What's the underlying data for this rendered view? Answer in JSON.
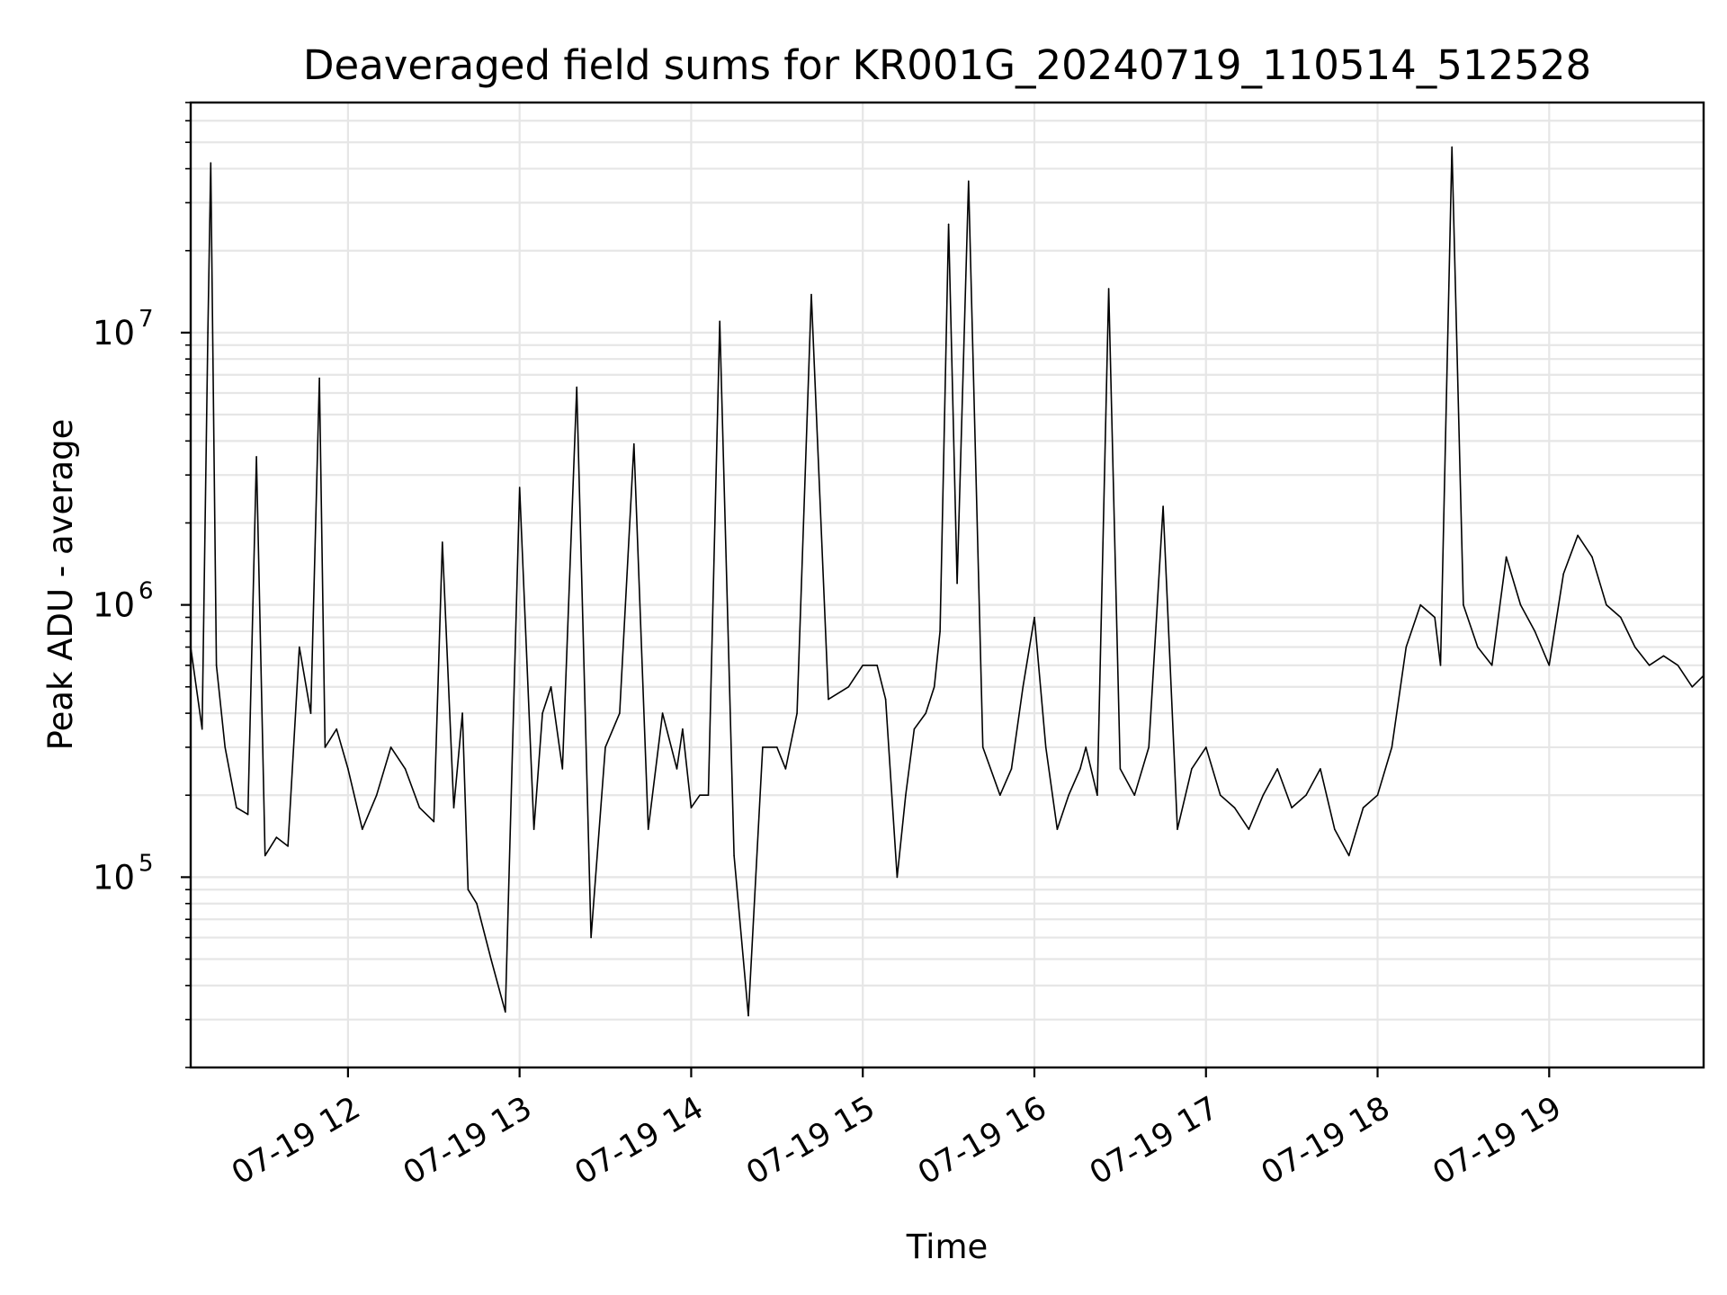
{
  "chart_data": {
    "type": "line",
    "title": "Deaveraged field sums for KR001G_20240719_110514_512528",
    "xlabel": "Time",
    "ylabel": "Peak ADU - average",
    "yscale": "log",
    "ylim": [
      20000,
      70000000
    ],
    "xlim": [
      "2024-07-19 11:05",
      "2024-07-19 19:54"
    ],
    "grid": true,
    "line_color": "#000000",
    "grid_color": "#e6e6e6",
    "x_ticks": [
      {
        "time": "2024-07-19 12:00",
        "label": "07-19 12"
      },
      {
        "time": "2024-07-19 13:00",
        "label": "07-19 13"
      },
      {
        "time": "2024-07-19 14:00",
        "label": "07-19 14"
      },
      {
        "time": "2024-07-19 15:00",
        "label": "07-19 15"
      },
      {
        "time": "2024-07-19 16:00",
        "label": "07-19 16"
      },
      {
        "time": "2024-07-19 17:00",
        "label": "07-19 17"
      },
      {
        "time": "2024-07-19 18:00",
        "label": "07-19 18"
      },
      {
        "time": "2024-07-19 19:00",
        "label": "07-19 19"
      }
    ],
    "y_ticks": [
      {
        "value": 100000,
        "base": "10",
        "exp": "5"
      },
      {
        "value": 1000000,
        "base": "10",
        "exp": "6"
      },
      {
        "value": 10000000,
        "base": "10",
        "exp": "7"
      }
    ],
    "series": [
      {
        "x": [
          "2024-07-19 11:05",
          "2024-07-19 11:09",
          "2024-07-19 11:11",
          "2024-07-19 11:12",
          "2024-07-19 11:14",
          "2024-07-19 11:17",
          "2024-07-19 11:21",
          "2024-07-19 11:25",
          "2024-07-19 11:28",
          "2024-07-19 11:31",
          "2024-07-19 11:35",
          "2024-07-19 11:39",
          "2024-07-19 11:43",
          "2024-07-19 11:47",
          "2024-07-19 11:50",
          "2024-07-19 11:52",
          "2024-07-19 11:56",
          "2024-07-19 12:00",
          "2024-07-19 12:05",
          "2024-07-19 12:10",
          "2024-07-19 12:15",
          "2024-07-19 12:20",
          "2024-07-19 12:25",
          "2024-07-19 12:30",
          "2024-07-19 12:33",
          "2024-07-19 12:37",
          "2024-07-19 12:40",
          "2024-07-19 12:42",
          "2024-07-19 12:45",
          "2024-07-19 12:50",
          "2024-07-19 12:55",
          "2024-07-19 13:00",
          "2024-07-19 13:05",
          "2024-07-19 13:08",
          "2024-07-19 13:11",
          "2024-07-19 13:15",
          "2024-07-19 13:20",
          "2024-07-19 13:25",
          "2024-07-19 13:30",
          "2024-07-19 13:35",
          "2024-07-19 13:40",
          "2024-07-19 13:45",
          "2024-07-19 13:50",
          "2024-07-19 13:55",
          "2024-07-19 13:57",
          "2024-07-19 14:00",
          "2024-07-19 14:03",
          "2024-07-19 14:06",
          "2024-07-19 14:10",
          "2024-07-19 14:15",
          "2024-07-19 14:20",
          "2024-07-19 14:25",
          "2024-07-19 14:30",
          "2024-07-19 14:33",
          "2024-07-19 14:37",
          "2024-07-19 14:42",
          "2024-07-19 14:48",
          "2024-07-19 14:55",
          "2024-07-19 15:00",
          "2024-07-19 15:05",
          "2024-07-19 15:08",
          "2024-07-19 15:12",
          "2024-07-19 15:15",
          "2024-07-19 15:18",
          "2024-07-19 15:22",
          "2024-07-19 15:25",
          "2024-07-19 15:27",
          "2024-07-19 15:30",
          "2024-07-19 15:33",
          "2024-07-19 15:37",
          "2024-07-19 15:42",
          "2024-07-19 15:48",
          "2024-07-19 15:52",
          "2024-07-19 15:56",
          "2024-07-19 16:00",
          "2024-07-19 16:04",
          "2024-07-19 16:08",
          "2024-07-19 16:12",
          "2024-07-19 16:16",
          "2024-07-19 16:18",
          "2024-07-19 16:22",
          "2024-07-19 16:26",
          "2024-07-19 16:30",
          "2024-07-19 16:35",
          "2024-07-19 16:40",
          "2024-07-19 16:45",
          "2024-07-19 16:50",
          "2024-07-19 16:55",
          "2024-07-19 17:00",
          "2024-07-19 17:05",
          "2024-07-19 17:10",
          "2024-07-19 17:15",
          "2024-07-19 17:20",
          "2024-07-19 17:25",
          "2024-07-19 17:30",
          "2024-07-19 17:35",
          "2024-07-19 17:40",
          "2024-07-19 17:45",
          "2024-07-19 17:50",
          "2024-07-19 17:55",
          "2024-07-19 18:00",
          "2024-07-19 18:05",
          "2024-07-19 18:10",
          "2024-07-19 18:15",
          "2024-07-19 18:20",
          "2024-07-19 18:22",
          "2024-07-19 18:26",
          "2024-07-19 18:30",
          "2024-07-19 18:35",
          "2024-07-19 18:40",
          "2024-07-19 18:45",
          "2024-07-19 18:50",
          "2024-07-19 18:55",
          "2024-07-19 19:00",
          "2024-07-19 19:05",
          "2024-07-19 19:10",
          "2024-07-19 19:15",
          "2024-07-19 19:20",
          "2024-07-19 19:25",
          "2024-07-19 19:30",
          "2024-07-19 19:35",
          "2024-07-19 19:40",
          "2024-07-19 19:45",
          "2024-07-19 19:50",
          "2024-07-19 19:54"
        ],
        "y": [
          700000,
          350000,
          10000000,
          42000000,
          600000,
          300000,
          180000,
          170000,
          3500000,
          120000,
          140000,
          130000,
          700000,
          400000,
          6800000,
          300000,
          350000,
          250000,
          150000,
          200000,
          300000,
          250000,
          180000,
          160000,
          1700000,
          180000,
          400000,
          90000,
          80000,
          50000,
          32000,
          2700000,
          150000,
          400000,
          500000,
          250000,
          6300000,
          60000,
          300000,
          400000,
          3900000,
          150000,
          400000,
          250000,
          350000,
          180000,
          200000,
          200000,
          11000000,
          120000,
          31000,
          300000,
          300000,
          250000,
          400000,
          13800000,
          450000,
          500000,
          600000,
          600000,
          450000,
          100000,
          200000,
          350000,
          400000,
          500000,
          800000,
          25000000,
          1200000,
          36000000,
          300000,
          200000,
          250000,
          500000,
          900000,
          300000,
          150000,
          200000,
          250000,
          300000,
          200000,
          14500000,
          250000,
          200000,
          300000,
          2300000,
          150000,
          250000,
          300000,
          200000,
          180000,
          150000,
          200000,
          250000,
          180000,
          200000,
          250000,
          150000,
          120000,
          180000,
          200000,
          300000,
          700000,
          1000000,
          900000,
          600000,
          48000000,
          1000000,
          700000,
          600000,
          1500000,
          1000000,
          800000,
          600000,
          1300000,
          1800000,
          1500000,
          1000000,
          900000,
          700000,
          600000,
          650000,
          600000,
          500000,
          550000
        ]
      }
    ]
  }
}
